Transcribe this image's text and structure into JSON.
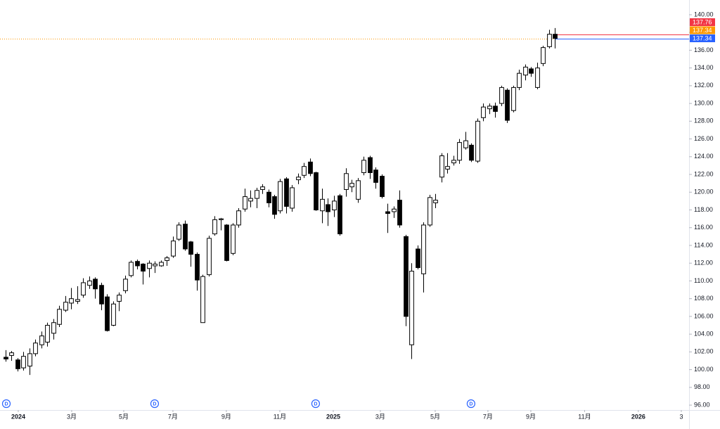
{
  "chart_data": {
    "type": "candlestick",
    "open": [
      101.4,
      101.6,
      101.1,
      100.2,
      100.4,
      101.8,
      102.8,
      103.1,
      104.1,
      105.1,
      106.7,
      107.5,
      107.7,
      108.4,
      109.5,
      110.2,
      109.5,
      108.2,
      105.0,
      107.7,
      108.9,
      110.6,
      112.2,
      111.9,
      111.4,
      111.7,
      111.7,
      112.3,
      112.8,
      114.7,
      116.4,
      114.4,
      113.0,
      105.3,
      110.7,
      115.3,
      116.9,
      116.3,
      113.1,
      116.3,
      118.1,
      119.0,
      119.3,
      120.3,
      120.0,
      119.5,
      117.9,
      121.5,
      118.2,
      121.4,
      121.9,
      123.4,
      122.2,
      117.9,
      118.6,
      118.0,
      119.6,
      120.3,
      120.6,
      119.2,
      122.2,
      123.9,
      122.5,
      121.8,
      117.8,
      117.8,
      119.1,
      115.0,
      102.8,
      113.6,
      110.8,
      116.3,
      118.8,
      121.7,
      122.6,
      123.3,
      123.6,
      125.0,
      125.3,
      123.5,
      128.4,
      129.4,
      129.7,
      130.0,
      131.5,
      129.2,
      131.8,
      133.2,
      133.9,
      131.8,
      134.5,
      136.4,
      137.8
    ],
    "high": [
      102.2,
      102.1,
      101.3,
      102.0,
      102.4,
      103.4,
      104.3,
      105.3,
      105.7,
      107.2,
      108.3,
      109.2,
      109.4,
      110.3,
      110.5,
      110.4,
      109.8,
      108.5,
      107.7,
      108.7,
      110.6,
      112.3,
      112.4,
      112.0,
      112.3,
      112.2,
      112.3,
      112.8,
      115.0,
      116.6,
      116.8,
      114.5,
      113.2,
      110.7,
      115.1,
      117.3,
      117.1,
      116.4,
      116.5,
      118.2,
      120.4,
      120.2,
      120.5,
      120.9,
      120.3,
      119.7,
      121.5,
      121.7,
      120.8,
      122.1,
      123.3,
      123.8,
      122.3,
      120.4,
      119.3,
      119.6,
      119.8,
      122.7,
      121.4,
      121.6,
      124.0,
      124.1,
      122.8,
      122.0,
      118.7,
      118.4,
      120.2,
      115.2,
      112.0,
      114.0,
      116.6,
      119.7,
      119.8,
      124.4,
      124.4,
      124.1,
      126.0,
      126.8,
      125.5,
      128.3,
      130.0,
      130.0,
      130.1,
      132.0,
      131.7,
      132.0,
      133.8,
      134.4,
      134.1,
      134.6,
      136.5,
      138.3,
      138.5
    ],
    "low": [
      100.9,
      101.0,
      99.8,
      99.9,
      99.4,
      101.5,
      102.4,
      102.6,
      103.4,
      104.8,
      106.5,
      106.8,
      107.4,
      108.1,
      109.1,
      108.0,
      106.7,
      104.3,
      104.9,
      106.6,
      108.6,
      110.4,
      111.3,
      109.6,
      110.4,
      110.9,
      111.6,
      111.7,
      112.6,
      114.5,
      113.4,
      111.6,
      108.9,
      105.3,
      110.5,
      115.1,
      115.7,
      112.2,
      112.9,
      116.0,
      117.8,
      118.3,
      118.2,
      119.8,
      118.3,
      117.0,
      117.6,
      117.6,
      117.8,
      120.9,
      121.6,
      121.8,
      117.9,
      116.5,
      116.2,
      117.2,
      115.1,
      119.5,
      120.0,
      118.8,
      121.9,
      121.5,
      120.4,
      119.3,
      115.4,
      117.1,
      116.0,
      104.9,
      101.2,
      111.3,
      108.7,
      116.1,
      118.2,
      121.1,
      122.1,
      123.0,
      123.2,
      124.8,
      123.4,
      123.3,
      128.0,
      128.8,
      128.4,
      129.7,
      127.8,
      129.0,
      131.5,
      132.6,
      133.0,
      131.6,
      134.2,
      136.2,
      136.2
    ],
    "close": [
      101.2,
      101.9,
      100.1,
      101.5,
      101.8,
      103.0,
      103.8,
      105.0,
      105.3,
      106.8,
      107.6,
      108.0,
      107.9,
      109.8,
      110.0,
      109.1,
      107.4,
      104.4,
      107.4,
      108.4,
      110.2,
      112.1,
      111.7,
      111.1,
      112.0,
      111.9,
      112.1,
      112.6,
      114.5,
      116.3,
      113.6,
      113.0,
      110.1,
      110.5,
      114.8,
      116.9,
      117.0,
      112.3,
      116.3,
      117.9,
      119.5,
      119.3,
      120.2,
      120.6,
      118.8,
      117.5,
      121.2,
      118.4,
      120.5,
      121.7,
      122.9,
      122.1,
      118.0,
      119.2,
      117.8,
      119.0,
      115.3,
      122.1,
      121.0,
      121.3,
      123.6,
      122.2,
      121.1,
      119.5,
      117.6,
      118.1,
      116.3,
      106.0,
      111.1,
      111.5,
      116.3,
      119.4,
      119.1,
      124.1,
      122.9,
      123.6,
      125.6,
      125.8,
      123.6,
      128.0,
      129.6,
      129.7,
      129.1,
      131.8,
      128.1,
      131.8,
      133.4,
      134.1,
      133.4,
      134.0,
      136.3,
      137.8,
      137.34
    ],
    "up_color": "#ffffff",
    "down_color": "#000000",
    "wick_color": "#000000",
    "ylim": [
      95.45,
      141.66
    ],
    "yticks": [
      {
        "value": 96,
        "label": "96.00"
      },
      {
        "value": 98,
        "label": "98.00"
      },
      {
        "value": 100,
        "label": "100.00"
      },
      {
        "value": 102,
        "label": "102.00"
      },
      {
        "value": 104,
        "label": "104.00"
      },
      {
        "value": 106,
        "label": "106.00"
      },
      {
        "value": 108,
        "label": "108.00"
      },
      {
        "value": 110,
        "label": "110.00"
      },
      {
        "value": 112,
        "label": "112.00"
      },
      {
        "value": 114,
        "label": "114.00"
      },
      {
        "value": 116,
        "label": "116.00"
      },
      {
        "value": 118,
        "label": "118.00"
      },
      {
        "value": 120,
        "label": "120.00"
      },
      {
        "value": 122,
        "label": "122.00"
      },
      {
        "value": 124,
        "label": "124.00"
      },
      {
        "value": 126,
        "label": "126.00"
      },
      {
        "value": 128,
        "label": "128.00"
      },
      {
        "value": 130,
        "label": "130.00"
      },
      {
        "value": 132,
        "label": "132.00"
      },
      {
        "value": 134,
        "label": "134.00"
      },
      {
        "value": 136,
        "label": "136.00"
      },
      {
        "value": 138,
        "label": "138.00"
      },
      {
        "value": 140,
        "label": "140.00"
      }
    ],
    "xlim": [
      -0.94,
      114.5
    ],
    "xticks": [
      {
        "value": 2.12,
        "label": "2024"
      },
      {
        "value": 11.07,
        "label": "3月"
      },
      {
        "value": 19.79,
        "label": "5月"
      },
      {
        "value": 28.03,
        "label": "7月"
      },
      {
        "value": 36.98,
        "label": "9月"
      },
      {
        "value": 45.94,
        "label": "11月"
      },
      {
        "value": 54.89,
        "label": "2025"
      },
      {
        "value": 62.78,
        "label": "3月"
      },
      {
        "value": 71.97,
        "label": "5月"
      },
      {
        "value": 80.8,
        "label": "7月"
      },
      {
        "value": 87.99,
        "label": "9月"
      },
      {
        "value": 97.0,
        "label": "11月"
      },
      {
        "value": 106.0,
        "label": "2026"
      },
      {
        "value": 113.2,
        "label": "3"
      }
    ],
    "events": [
      {
        "x": 0.12,
        "label": "D"
      },
      {
        "x": 24.97,
        "label": "D"
      },
      {
        "x": 51.94,
        "label": "D"
      },
      {
        "x": 77.97,
        "label": "D"
      }
    ],
    "price_lines": [
      {
        "value": 137.76,
        "color": "#f23645",
        "line_style": "solid",
        "extent": "last"
      },
      {
        "value": 137.34,
        "color": "#ff9800",
        "line_style": "dotted",
        "extent": "full"
      },
      {
        "value": 137.34,
        "color": "#2962ff",
        "line_style": "solid",
        "extent": "last"
      }
    ]
  }
}
